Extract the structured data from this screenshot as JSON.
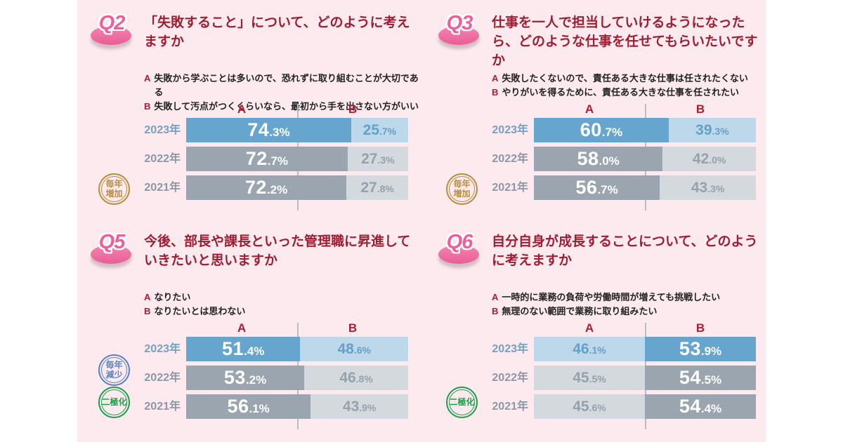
{
  "colors": {
    "background_pink": "#fceaee",
    "title_red": "#9e1d33",
    "accent_red": "#b4182f",
    "bar_blue": "#66a5cd",
    "bar_blue_light": "#bcd8ea",
    "bar_gray": "#9aa5b0",
    "bar_gray_light": "#d4d9dd",
    "year_label_blue": "#74a0c4",
    "year_label_gray": "#8b98a6",
    "badge_gold": "#b98e3e",
    "badge_blue": "#5b82c3",
    "badge_green": "#1fa14c",
    "q_badge_pink": "#ec5f9a"
  },
  "panels": [
    {
      "q_label": "Q2",
      "title": "「失敗すること」について、どのように考えますか",
      "options": [
        {
          "key": "A",
          "text": "失敗から学ぶことは多いので、恐れずに取り組むことが大切である"
        },
        {
          "key": "B",
          "text": "失敗して汚点がつくくらいなら、最初から手を出さない方がいい"
        }
      ],
      "col_a": "A",
      "col_b": "B",
      "badges": [
        {
          "lines": [
            "毎年",
            "増加"
          ],
          "color": "gold"
        }
      ],
      "rows": [
        {
          "year": "2023年",
          "a": {
            "int": "74",
            "dec": ".3%",
            "pct": 74.3
          },
          "b": {
            "int": "25",
            "dec": ".7%",
            "pct": 25.7
          }
        },
        {
          "year": "2022年",
          "a": {
            "int": "72",
            "dec": ".7%",
            "pct": 72.7
          },
          "b": {
            "int": "27",
            "dec": ".3%",
            "pct": 27.3
          }
        },
        {
          "year": "2021年",
          "a": {
            "int": "72",
            "dec": ".2%",
            "pct": 72.2
          },
          "b": {
            "int": "27",
            "dec": ".8%",
            "pct": 27.8
          }
        }
      ]
    },
    {
      "q_label": "Q3",
      "title": "仕事を一人で担当していけるようになったら、どのような仕事を任せてもらいたいですか",
      "options": [
        {
          "key": "A",
          "text": "失敗したくないので、責任ある大きな仕事は任されたくない"
        },
        {
          "key": "B",
          "text": "やりがいを得るために、責任ある大きな仕事を任されたい"
        }
      ],
      "col_a": "A",
      "col_b": "B",
      "badges": [
        {
          "lines": [
            "毎年",
            "増加"
          ],
          "color": "gold"
        }
      ],
      "rows": [
        {
          "year": "2023年",
          "a": {
            "int": "60",
            "dec": ".7%",
            "pct": 60.7
          },
          "b": {
            "int": "39",
            "dec": ".3%",
            "pct": 39.3
          }
        },
        {
          "year": "2022年",
          "a": {
            "int": "58",
            "dec": ".0%",
            "pct": 58.0
          },
          "b": {
            "int": "42",
            "dec": ".0%",
            "pct": 42.0
          }
        },
        {
          "year": "2021年",
          "a": {
            "int": "56",
            "dec": ".7%",
            "pct": 56.7
          },
          "b": {
            "int": "43",
            "dec": ".3%",
            "pct": 43.3
          }
        }
      ]
    },
    {
      "q_label": "Q5",
      "title": "今後、部長や課長といった管理職に昇進していきたいと思いますか",
      "options": [
        {
          "key": "A",
          "text": "なりたい"
        },
        {
          "key": "B",
          "text": "なりたいとは思わない"
        }
      ],
      "col_a": "A",
      "col_b": "B",
      "badges": [
        {
          "lines": [
            "毎年",
            "減少"
          ],
          "color": "blue"
        },
        {
          "lines": [
            "二極化"
          ],
          "color": "green"
        }
      ],
      "rows": [
        {
          "year": "2023年",
          "a": {
            "int": "51",
            "dec": ".4%",
            "pct": 51.4
          },
          "b": {
            "int": "48",
            "dec": ".6%",
            "pct": 48.6
          }
        },
        {
          "year": "2022年",
          "a": {
            "int": "53",
            "dec": ".2%",
            "pct": 53.2
          },
          "b": {
            "int": "46",
            "dec": ".8%",
            "pct": 46.8
          }
        },
        {
          "year": "2021年",
          "a": {
            "int": "56",
            "dec": ".1%",
            "pct": 56.1
          },
          "b": {
            "int": "43",
            "dec": ".9%",
            "pct": 43.9
          }
        }
      ]
    },
    {
      "q_label": "Q6",
      "title": "自分自身が成長することについて、どのように考えますか",
      "options": [
        {
          "key": "A",
          "text": "一時的に業務の負荷や労働時間が増えても挑戦したい"
        },
        {
          "key": "B",
          "text": "無理のない範囲で業務に取り組みたい"
        }
      ],
      "col_a": "A",
      "col_b": "B",
      "badges": [
        {
          "lines": [
            "二極化"
          ],
          "color": "green"
        }
      ],
      "rows": [
        {
          "year": "2023年",
          "a": {
            "int": "46",
            "dec": ".1%",
            "pct": 46.1
          },
          "b": {
            "int": "53",
            "dec": ".9%",
            "pct": 53.9
          }
        },
        {
          "year": "2022年",
          "a": {
            "int": "45",
            "dec": ".5%",
            "pct": 45.5
          },
          "b": {
            "int": "54",
            "dec": ".5%",
            "pct": 54.5
          }
        },
        {
          "year": "2021年",
          "a": {
            "int": "45",
            "dec": ".6%",
            "pct": 45.6
          },
          "b": {
            "int": "54",
            "dec": ".4%",
            "pct": 54.4
          }
        }
      ]
    }
  ],
  "chart_data": [
    {
      "type": "bar",
      "orientation": "horizontal",
      "title": "Q2 「失敗すること」について、どのように考えますか",
      "categories": [
        "2023年",
        "2022年",
        "2021年"
      ],
      "series": [
        {
          "name": "A 失敗から学ぶことは多いので、恐れずに取り組むことが大切である",
          "values": [
            74.3,
            72.7,
            72.2
          ]
        },
        {
          "name": "B 失敗して汚点がつくくらいなら、最初から手を出さない方がいい",
          "values": [
            25.7,
            27.3,
            27.8
          ]
        }
      ],
      "xlim": [
        0,
        100
      ],
      "unit": "%",
      "stacked": true,
      "annotations": [
        "毎年増加"
      ]
    },
    {
      "type": "bar",
      "orientation": "horizontal",
      "title": "Q3 仕事を一人で担当していけるようになったら、どのような仕事を任せてもらいたいですか",
      "categories": [
        "2023年",
        "2022年",
        "2021年"
      ],
      "series": [
        {
          "name": "A 失敗したくないので、責任ある大きな仕事は任されたくない",
          "values": [
            60.7,
            58.0,
            56.7
          ]
        },
        {
          "name": "B やりがいを得るために、責任ある大きな仕事を任されたい",
          "values": [
            39.3,
            42.0,
            43.3
          ]
        }
      ],
      "xlim": [
        0,
        100
      ],
      "unit": "%",
      "stacked": true,
      "annotations": [
        "毎年増加"
      ]
    },
    {
      "type": "bar",
      "orientation": "horizontal",
      "title": "Q5 今後、部長や課長といった管理職に昇進していきたいと思いますか",
      "categories": [
        "2023年",
        "2022年",
        "2021年"
      ],
      "series": [
        {
          "name": "A なりたい",
          "values": [
            51.4,
            53.2,
            56.1
          ]
        },
        {
          "name": "B なりたいとは思わない",
          "values": [
            48.6,
            46.8,
            43.9
          ]
        }
      ],
      "xlim": [
        0,
        100
      ],
      "unit": "%",
      "stacked": true,
      "annotations": [
        "毎年減少",
        "二極化"
      ]
    },
    {
      "type": "bar",
      "orientation": "horizontal",
      "title": "Q6 自分自身が成長することについて、どのように考えますか",
      "categories": [
        "2023年",
        "2022年",
        "2021年"
      ],
      "series": [
        {
          "name": "A 一時的に業務の負荷や労働時間が増えても挑戦したい",
          "values": [
            46.1,
            45.5,
            45.6
          ]
        },
        {
          "name": "B 無理のない範囲で業務に取り組みたい",
          "values": [
            53.9,
            54.5,
            54.4
          ]
        }
      ],
      "xlim": [
        0,
        100
      ],
      "unit": "%",
      "stacked": true,
      "annotations": [
        "二極化"
      ]
    }
  ]
}
